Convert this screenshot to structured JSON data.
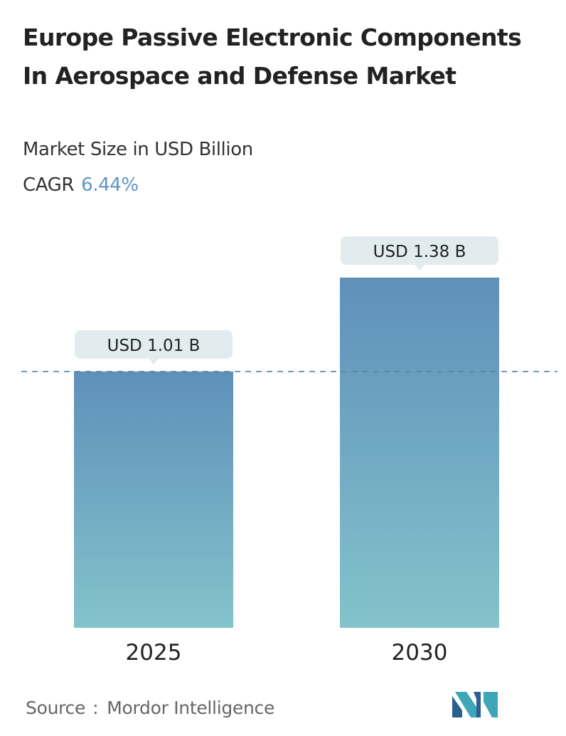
{
  "header": {
    "title": "Europe Passive Electronic Components In Aerospace and Defense Market",
    "subtitle": "Market Size in USD Billion",
    "cagr_label": "CAGR",
    "cagr_value": "6.44%"
  },
  "chart_data": {
    "type": "bar",
    "categories": [
      "2025",
      "2030"
    ],
    "values": [
      1.01,
      1.38
    ],
    "data_labels": [
      "USD 1.01 B",
      "USD 1.38 B"
    ],
    "ylim": [
      0,
      1.38
    ],
    "grid": false,
    "reference_line": {
      "value": 1.01,
      "style": "dashed"
    },
    "colors": {
      "bar_top": "#5f90ba",
      "bar_bottom": "#83c3cb",
      "label_bg": "#e2ecee",
      "reference_line": "#5a84a0"
    }
  },
  "footer": {
    "source_label": "Source",
    "source_separator": ":",
    "source_value": "Mordor Intelligence"
  },
  "logo": {
    "icon": "mordor-intelligence-logo-icon",
    "colors": [
      "#2a5f8f",
      "#3ea6b6"
    ]
  }
}
